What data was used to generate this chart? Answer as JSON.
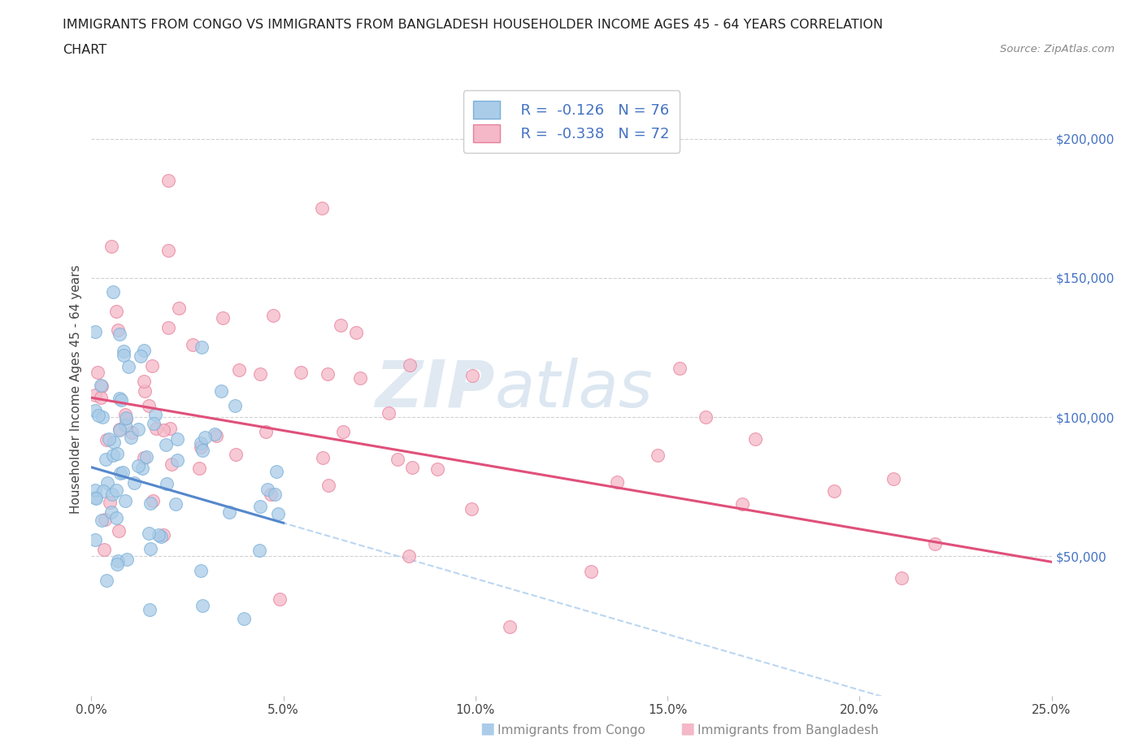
{
  "title_line1": "IMMIGRANTS FROM CONGO VS IMMIGRANTS FROM BANGLADESH HOUSEHOLDER INCOME AGES 45 - 64 YEARS CORRELATION",
  "title_line2": "CHART",
  "source_text": "Source: ZipAtlas.com",
  "ylabel": "Householder Income Ages 45 - 64 years",
  "xlim": [
    0.0,
    0.25
  ],
  "ylim": [
    0,
    220000
  ],
  "xtick_labels": [
    "0.0%",
    "5.0%",
    "10.0%",
    "15.0%",
    "20.0%",
    "25.0%"
  ],
  "xtick_vals": [
    0.0,
    0.05,
    0.1,
    0.15,
    0.2,
    0.25
  ],
  "ytick_labels": [
    "$50,000",
    "$100,000",
    "$150,000",
    "$200,000"
  ],
  "ytick_vals": [
    50000,
    100000,
    150000,
    200000
  ],
  "congo_scatter_color": "#aacce8",
  "congo_edge_color": "#7ab0d8",
  "bangladesh_scatter_color": "#f4b8c8",
  "bangladesh_edge_color": "#e8809a",
  "trend_congo_color": "#5588cc",
  "trend_bangladesh_color": "#e0507a",
  "trend_dashed_color": "#aaccee",
  "legend_R_congo": "R =  -0.126",
  "legend_N_congo": "N = 76",
  "legend_R_bangladesh": "R =  -0.338",
  "legend_N_bangladesh": "N = 72",
  "watermark_zip": "ZIP",
  "watermark_atlas": "atlas",
  "background_color": "#ffffff",
  "grid_color": "#cccccc",
  "right_tick_color": "#4472c4",
  "bottom_label_congo": "Immigrants from Congo",
  "bottom_label_bangladesh": "Immigrants from Bangladesh",
  "congo_trend_x0": 0.0,
  "congo_trend_y0": 82000,
  "congo_trend_x1": 0.05,
  "congo_trend_y1": 62000,
  "bangladesh_trend_x0": 0.0,
  "bangladesh_trend_y0": 107000,
  "bangladesh_trend_x1": 0.25,
  "bangladesh_trend_y1": 48000
}
